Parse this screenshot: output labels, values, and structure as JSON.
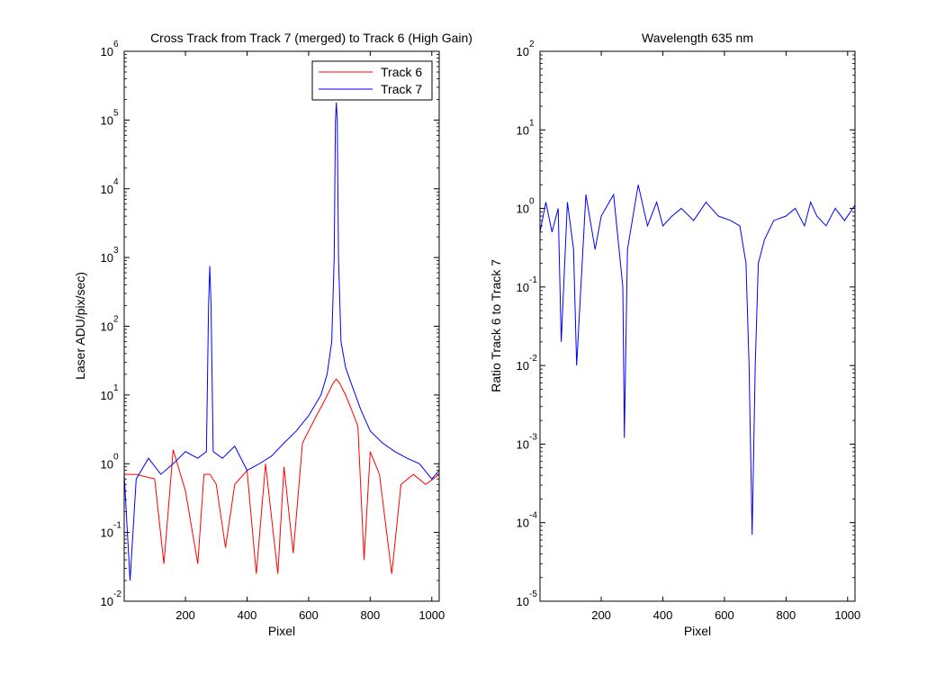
{
  "chart_data": [
    {
      "type": "line",
      "title": "Cross Track from Track 7 (merged) to Track 6 (High Gain)",
      "xlabel": "Pixel",
      "ylabel": "Laser ADU/pix/sec)",
      "xlim": [
        1,
        1024
      ],
      "ylim": [
        0.01,
        1000000
      ],
      "yscale": "log",
      "xticks": [
        200,
        400,
        600,
        800,
        1000
      ],
      "xtick_labels": [
        "200",
        "400",
        "600",
        "800",
        "1000"
      ],
      "yticks": [
        {
          "value": 0.01,
          "base": "10",
          "exp": "-2"
        },
        {
          "value": 0.1,
          "base": "10",
          "exp": "-1"
        },
        {
          "value": 1,
          "base": "10",
          "exp": "0"
        },
        {
          "value": 10,
          "base": "10",
          "exp": "1"
        },
        {
          "value": 100,
          "base": "10",
          "exp": "2"
        },
        {
          "value": 1000,
          "base": "10",
          "exp": "3"
        },
        {
          "value": 10000,
          "base": "10",
          "exp": "4"
        },
        {
          "value": 100000,
          "base": "10",
          "exp": "5"
        },
        {
          "value": 1000000,
          "base": "10",
          "exp": "6"
        }
      ],
      "legend": {
        "placement": "top-right"
      },
      "grid": false,
      "series": [
        {
          "name": "Track 6",
          "color": "#ff0000",
          "points": [
            [
              1,
              0.7
            ],
            [
              40,
              0.7
            ],
            [
              100,
              0.6
            ],
            [
              130,
              0.035
            ],
            [
              160,
              1.6
            ],
            [
              200,
              0.4
            ],
            [
              240,
              0.035
            ],
            [
              260,
              0.7
            ],
            [
              280,
              0.7
            ],
            [
              300,
              0.5
            ],
            [
              330,
              0.06
            ],
            [
              360,
              0.5
            ],
            [
              400,
              0.8
            ],
            [
              430,
              0.025
            ],
            [
              460,
              1.0
            ],
            [
              500,
              0.025
            ],
            [
              520,
              0.9
            ],
            [
              550,
              0.05
            ],
            [
              580,
              2
            ],
            [
              620,
              4.5
            ],
            [
              650,
              8
            ],
            [
              680,
              15
            ],
            [
              690,
              17
            ],
            [
              700,
              15
            ],
            [
              720,
              10
            ],
            [
              740,
              6
            ],
            [
              760,
              3.5
            ],
            [
              780,
              0.04
            ],
            [
              800,
              1.5
            ],
            [
              830,
              0.7
            ],
            [
              870,
              0.025
            ],
            [
              900,
              0.5
            ],
            [
              940,
              0.7
            ],
            [
              980,
              0.5
            ],
            [
              1024,
              0.7
            ]
          ]
        },
        {
          "name": "Track 7",
          "color": "#0000ff",
          "points": [
            [
              1,
              0.7
            ],
            [
              20,
              0.02
            ],
            [
              40,
              0.6
            ],
            [
              80,
              1.2
            ],
            [
              120,
              0.7
            ],
            [
              160,
              1.0
            ],
            [
              200,
              1.5
            ],
            [
              240,
              1.2
            ],
            [
              268,
              1.5
            ],
            [
              275,
              200
            ],
            [
              279,
              750
            ],
            [
              283,
              200
            ],
            [
              290,
              1.5
            ],
            [
              320,
              1.2
            ],
            [
              360,
              1.8
            ],
            [
              400,
              0.8
            ],
            [
              440,
              1.0
            ],
            [
              480,
              1.3
            ],
            [
              520,
              2
            ],
            [
              560,
              3
            ],
            [
              600,
              5
            ],
            [
              640,
              10
            ],
            [
              660,
              20
            ],
            [
              675,
              60
            ],
            [
              683,
              1000
            ],
            [
              687,
              100000
            ],
            [
              690,
              180000
            ],
            [
              693,
              100000
            ],
            [
              697,
              1000
            ],
            [
              705,
              60
            ],
            [
              720,
              25
            ],
            [
              740,
              14
            ],
            [
              770,
              6
            ],
            [
              800,
              3
            ],
            [
              840,
              2
            ],
            [
              880,
              1.5
            ],
            [
              920,
              1.2
            ],
            [
              960,
              1.0
            ],
            [
              1000,
              0.6
            ],
            [
              1024,
              0.8
            ]
          ]
        }
      ]
    },
    {
      "type": "line",
      "title": "Wavelength 635 nm",
      "xlabel": "Pixel",
      "ylabel": "Ratio Track 6 to Track 7",
      "xlim": [
        1,
        1024
      ],
      "ylim": [
        1e-05,
        100
      ],
      "yscale": "log",
      "xticks": [
        200,
        400,
        600,
        800,
        1000
      ],
      "xtick_labels": [
        "200",
        "400",
        "600",
        "800",
        "1000"
      ],
      "yticks": [
        {
          "value": 1e-05,
          "base": "10",
          "exp": "-5"
        },
        {
          "value": 0.0001,
          "base": "10",
          "exp": "-4"
        },
        {
          "value": 0.001,
          "base": "10",
          "exp": "-3"
        },
        {
          "value": 0.01,
          "base": "10",
          "exp": "-2"
        },
        {
          "value": 0.1,
          "base": "10",
          "exp": "-1"
        },
        {
          "value": 1,
          "base": "10",
          "exp": "0"
        },
        {
          "value": 10,
          "base": "10",
          "exp": "1"
        },
        {
          "value": 100,
          "base": "10",
          "exp": "2"
        }
      ],
      "grid": false,
      "series": [
        {
          "color": "#0000ff",
          "points": [
            [
              1,
              0.5
            ],
            [
              20,
              1.2
            ],
            [
              40,
              0.5
            ],
            [
              60,
              1.0
            ],
            [
              70,
              0.02
            ],
            [
              90,
              1.2
            ],
            [
              110,
              0.3
            ],
            [
              120,
              0.01
            ],
            [
              150,
              1.5
            ],
            [
              180,
              0.3
            ],
            [
              200,
              0.8
            ],
            [
              240,
              1.5
            ],
            [
              270,
              0.1
            ],
            [
              275,
              0.0012
            ],
            [
              285,
              0.3
            ],
            [
              320,
              2.0
            ],
            [
              350,
              0.6
            ],
            [
              380,
              1.2
            ],
            [
              400,
              0.6
            ],
            [
              430,
              0.8
            ],
            [
              460,
              1.0
            ],
            [
              500,
              0.7
            ],
            [
              540,
              1.2
            ],
            [
              580,
              0.8
            ],
            [
              620,
              0.7
            ],
            [
              650,
              0.6
            ],
            [
              670,
              0.2
            ],
            [
              680,
              0.01
            ],
            [
              690,
              7e-05
            ],
            [
              700,
              0.01
            ],
            [
              710,
              0.2
            ],
            [
              730,
              0.4
            ],
            [
              760,
              0.7
            ],
            [
              800,
              0.8
            ],
            [
              830,
              1.0
            ],
            [
              860,
              0.6
            ],
            [
              880,
              1.2
            ],
            [
              900,
              0.8
            ],
            [
              930,
              0.6
            ],
            [
              960,
              1.0
            ],
            [
              990,
              0.7
            ],
            [
              1024,
              1.1
            ]
          ]
        }
      ]
    }
  ]
}
